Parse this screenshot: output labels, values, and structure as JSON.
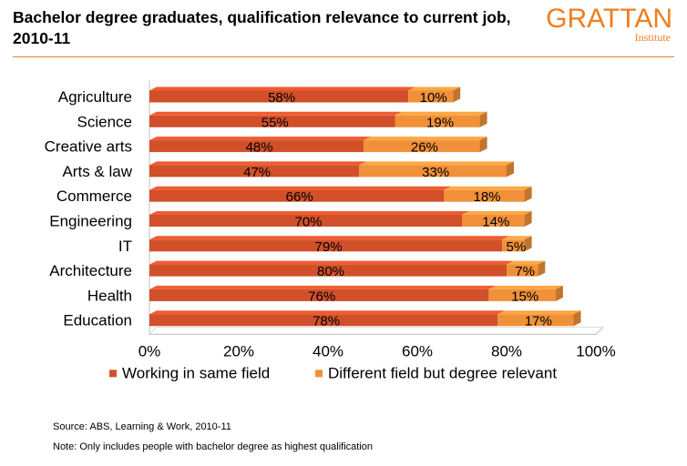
{
  "header": {
    "title": "Bachelor degree graduates, qualification relevance to current job, 2010-11",
    "logo_main": "GRATTAN",
    "logo_sub": "Institute"
  },
  "colors": {
    "accent": "#f07d20",
    "series_same": "#d1502a",
    "series_relevant": "#f0913a"
  },
  "chart_data": {
    "type": "bar",
    "orientation": "horizontal",
    "stacked": true,
    "categories": [
      "Agriculture",
      "Science",
      "Creative arts",
      "Arts & law",
      "Commerce",
      "Engineering",
      "IT",
      "Architecture",
      "Health",
      "Education"
    ],
    "series": [
      {
        "name": "Working in same field",
        "values": [
          58,
          55,
          48,
          47,
          66,
          70,
          79,
          80,
          76,
          78
        ],
        "color": "#d1502a"
      },
      {
        "name": "Different field but degree relevant",
        "values": [
          10,
          19,
          26,
          33,
          18,
          14,
          5,
          7,
          15,
          17
        ],
        "color": "#f0913a"
      }
    ],
    "data_labels": [
      [
        "58%",
        "55%",
        "48%",
        "47%",
        "66%",
        "70%",
        "79%",
        "80%",
        "76%",
        "78%"
      ],
      [
        "10%",
        "19%",
        "26%",
        "33%",
        "18%",
        "14%",
        "5%",
        "7%",
        "15%",
        "17%"
      ]
    ],
    "xticks": [
      "0%",
      "20%",
      "40%",
      "60%",
      "80%",
      "100%"
    ],
    "xlim": [
      0,
      100
    ],
    "grid": false,
    "legend_position": "bottom"
  },
  "footer": {
    "source": "Source: ABS, Learning & Work, 2010-11",
    "note": "Note: Only includes people with bachelor degree as highest qualification"
  }
}
